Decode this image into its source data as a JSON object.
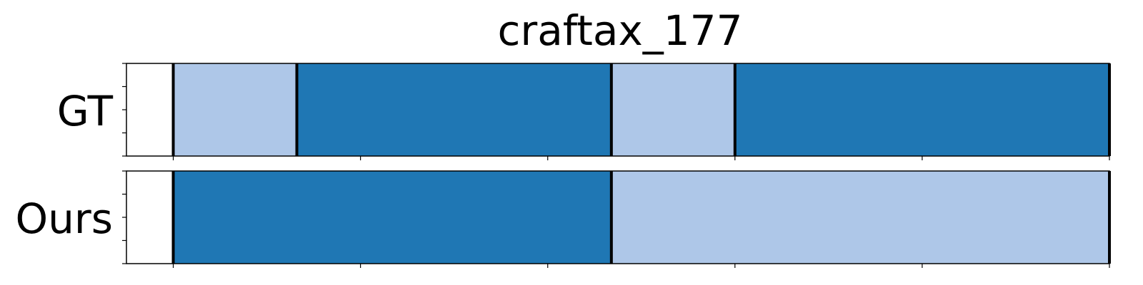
{
  "chart_data": {
    "type": "segment-timeline",
    "title": "craftax_177",
    "x_range": [
      -25,
      500
    ],
    "x_ticks": [
      0,
      100,
      200,
      300,
      400,
      500
    ],
    "colors": {
      "light": "#aec7e8",
      "dark": "#1f77b4",
      "boundary": "#000000"
    },
    "rows": [
      {
        "label": "GT",
        "segments": [
          {
            "start": 0,
            "end": 66,
            "color": "light"
          },
          {
            "start": 66,
            "end": 234,
            "color": "dark"
          },
          {
            "start": 234,
            "end": 300,
            "color": "light"
          },
          {
            "start": 300,
            "end": 500,
            "color": "dark"
          }
        ]
      },
      {
        "label": "Ours",
        "segments": [
          {
            "start": 0,
            "end": 234,
            "color": "dark"
          },
          {
            "start": 234,
            "end": 500,
            "color": "light"
          }
        ]
      }
    ]
  }
}
